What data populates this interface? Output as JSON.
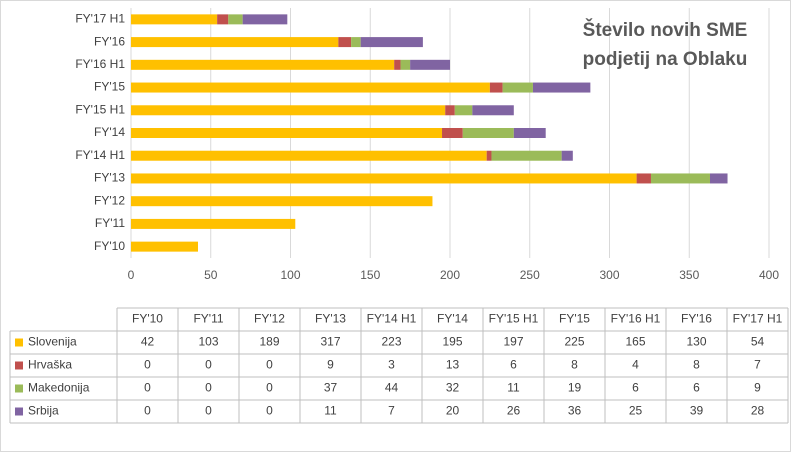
{
  "chart_data": {
    "type": "bar",
    "orientation": "horizontal",
    "stacked": true,
    "title": "Število novih SME podjetij na Oblaku",
    "categories": [
      "FY'10",
      "FY'11",
      "FY'12",
      "FY'13",
      "FY'14 H1",
      "FY'14",
      "FY'15 H1",
      "FY'15",
      "FY'16 H1",
      "FY'16",
      "FY'17 H1"
    ],
    "series": [
      {
        "name": "Slovenija",
        "color": "#FFC000",
        "values": [
          42,
          103,
          189,
          317,
          223,
          195,
          197,
          225,
          165,
          130,
          54
        ]
      },
      {
        "name": "Hrvaška",
        "color": "#C0504D",
        "values": [
          0,
          0,
          0,
          9,
          3,
          13,
          6,
          8,
          4,
          8,
          7
        ]
      },
      {
        "name": "Makedonija",
        "color": "#9BBB59",
        "values": [
          0,
          0,
          0,
          37,
          44,
          32,
          11,
          19,
          6,
          6,
          9
        ]
      },
      {
        "name": "Srbija",
        "color": "#8064A2",
        "values": [
          0,
          0,
          0,
          11,
          7,
          20,
          26,
          36,
          25,
          39,
          28
        ]
      }
    ],
    "xlim": [
      0,
      400
    ],
    "xticks": [
      0,
      50,
      100,
      150,
      200,
      250,
      300,
      350,
      400
    ],
    "grid": true,
    "data_table": true
  }
}
